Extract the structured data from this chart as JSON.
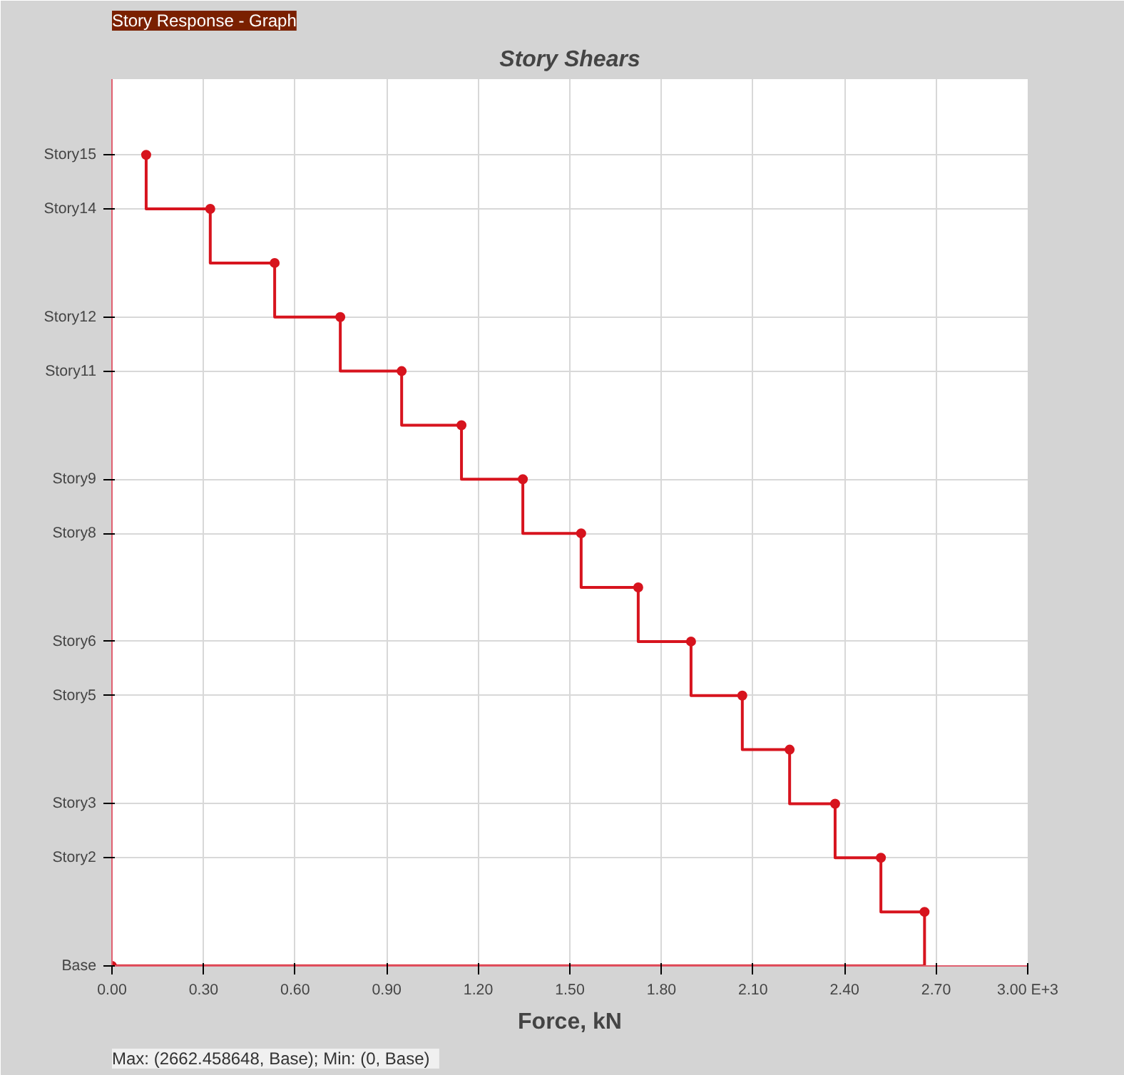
{
  "chart_data": {
    "type": "step",
    "orientation": "horizontal",
    "title": "Story Shears",
    "xlabel": "Force, kN",
    "annotations": [
      "Story Response - Graph",
      "Max: (2662.458648, Base);   Min: (0, Base)"
    ],
    "categories": [
      "Story15",
      "Story14",
      null,
      "Story12",
      "Story11",
      null,
      "Story9",
      "Story8",
      null,
      "Story6",
      "Story5",
      null,
      "Story3",
      "Story2",
      null,
      "Base"
    ],
    "series": [
      {
        "color": "#d7141e",
        "values": [
          0.112,
          0.322,
          0.533,
          0.748,
          0.949,
          1.145,
          1.346,
          1.537,
          1.724,
          1.897,
          2.065,
          2.22,
          2.369,
          2.519,
          2.662,
          0
        ]
      }
    ],
    "xlim": [
      0,
      3
    ],
    "xticks": [
      {
        "value": 0,
        "label": "0.00"
      },
      {
        "value": 0.3,
        "label": "0.30"
      },
      {
        "value": 0.6,
        "label": "0.60"
      },
      {
        "value": 0.9,
        "label": "0.90"
      },
      {
        "value": 1.2,
        "label": "1.20"
      },
      {
        "value": 1.5,
        "label": "1.50"
      },
      {
        "value": 1.8,
        "label": "1.80"
      },
      {
        "value": 2.1,
        "label": "2.10"
      },
      {
        "value": 2.4,
        "label": "2.40"
      },
      {
        "value": 2.7,
        "label": "2.70"
      },
      {
        "value": 3,
        "label": "3.00 E+3"
      }
    ],
    "grid": true,
    "marker": "circle",
    "line_style": "solid"
  }
}
